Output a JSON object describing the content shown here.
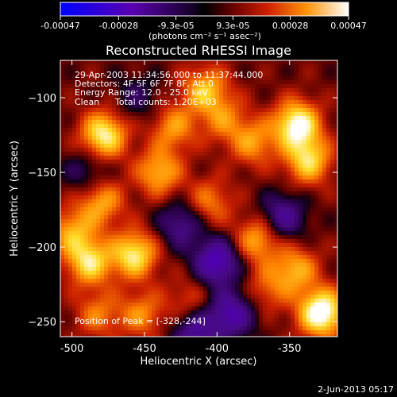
{
  "colors": {
    "background": "#000000",
    "foreground": "#ffffff"
  },
  "colorbar": {
    "ticks": [
      "-0.00047",
      "-0.00028",
      "-9.3e-05",
      "9.3e-05",
      "0.00028",
      "0.00047"
    ],
    "tick_values": [
      -0.00047,
      -0.00028,
      -9.3e-05,
      9.3e-05,
      0.00028,
      0.00047
    ],
    "range": [
      -0.00047,
      0.00047
    ],
    "unit_label": "(photons cm⁻² s⁻¹ asec⁻²)"
  },
  "chart_data": {
    "type": "heatmap",
    "title": "Reconstructed RHESSI Image",
    "xlabel": "Heliocentric X (arcsec)",
    "ylabel": "Heliocentric Y (arcsec)",
    "xlim": [
      -508,
      -317
    ],
    "ylim": [
      -260,
      -75
    ],
    "x_ticks": [
      -500,
      -450,
      -400,
      -350
    ],
    "y_ticks": [
      -100,
      -150,
      -200,
      -250
    ],
    "x_tick_labels": [
      "-500",
      "-450",
      "-400",
      "-350"
    ],
    "y_tick_labels": [
      "−100",
      "−150",
      "−200",
      "−250"
    ],
    "colormap": "blue-purple-black-red-yellow-white",
    "peak": [
      -328,
      -244
    ],
    "sources": [
      {
        "x": -478,
        "y": -125,
        "value": 0.00038
      },
      {
        "x": -488,
        "y": -210,
        "value": 0.00033
      },
      {
        "x": -480,
        "y": -170,
        "value": 0.00025
      },
      {
        "x": -457,
        "y": -205,
        "value": 0.00036
      },
      {
        "x": -440,
        "y": -150,
        "value": 0.00027
      },
      {
        "x": -430,
        "y": -120,
        "value": 0.00022
      },
      {
        "x": -408,
        "y": -95,
        "value": 0.00028
      },
      {
        "x": -395,
        "y": -115,
        "value": 0.00018
      },
      {
        "x": -405,
        "y": -170,
        "value": 0.00019
      },
      {
        "x": -375,
        "y": -130,
        "value": 0.00022
      },
      {
        "x": -345,
        "y": -118,
        "value": 0.00042
      },
      {
        "x": -337,
        "y": -142,
        "value": 0.00032
      },
      {
        "x": -372,
        "y": -195,
        "value": 0.00026
      },
      {
        "x": -346,
        "y": -215,
        "value": 0.00025
      },
      {
        "x": -365,
        "y": -228,
        "value": 0.00015
      },
      {
        "x": -452,
        "y": -245,
        "value": 0.0002
      },
      {
        "x": -482,
        "y": -245,
        "value": 0.00018
      },
      {
        "x": -328,
        "y": -244,
        "value": 0.00047
      },
      {
        "x": -500,
        "y": -190,
        "value": 0.00024
      },
      {
        "x": -420,
        "y": -235,
        "value": 0.00012
      },
      {
        "x": -400,
        "y": -210,
        "value": -0.00035
      },
      {
        "x": -390,
        "y": -245,
        "value": -0.0003
      },
      {
        "x": -425,
        "y": -185,
        "value": -0.00022
      },
      {
        "x": -355,
        "y": -180,
        "value": -0.00025
      },
      {
        "x": -490,
        "y": -150,
        "value": -0.00014
      },
      {
        "x": -455,
        "y": -100,
        "value": -0.00012
      },
      {
        "x": -415,
        "y": -258,
        "value": -0.00025
      }
    ],
    "annotations": {
      "time": "29-Apr-2003 11:34:56.000 to 11:37:44.000",
      "detectors": "Detectors: 4F 5F 6F 7F 8F, Att 0",
      "energy": "Energy Range: 12.0 - 25.0 keV",
      "method": "Clean",
      "counts": "Total counts: 1.20E+03",
      "peak_label": "Position of Peak = [-328,-244]"
    }
  },
  "footer": {
    "date": "2-Jun-2013 05:17"
  }
}
